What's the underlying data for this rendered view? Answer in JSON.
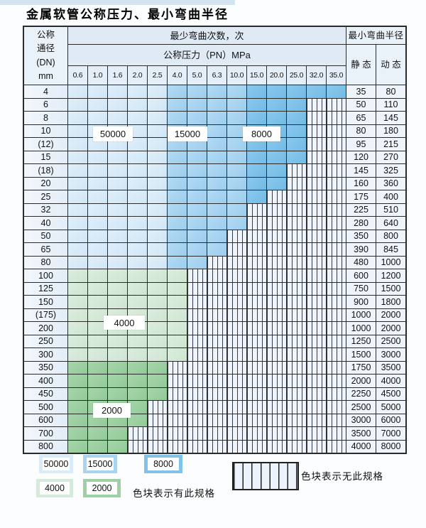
{
  "page": {
    "title": "金属软管公称压力、最小弯曲半径"
  },
  "table": {
    "header": {
      "dn_lines": [
        "公称",
        "通径",
        "(DN)",
        "mm"
      ],
      "cycles": "最少弯曲次数，次",
      "pressure": "公称压力（PN）MPa",
      "ticks": [
        "0.6",
        "1.0",
        "1.6",
        "2.0",
        "2.5",
        "4.0",
        "5.0",
        "6.3",
        "10.0",
        "15.0",
        "20.0",
        "25.0",
        "32.0",
        "35.0"
      ],
      "radius": "最小弯曲半径",
      "static": "静 态",
      "dynamic": "动 态"
    },
    "zones": {
      "blue_light_max_col": 5,
      "blue_mid_max_col": 9
    },
    "rows": [
      {
        "dn": "4",
        "group": "blue",
        "colored": 14,
        "static": "35",
        "dynamic": "80"
      },
      {
        "dn": "6",
        "group": "blue",
        "colored": 12,
        "static": "50",
        "dynamic": "110"
      },
      {
        "dn": "8",
        "group": "blue",
        "colored": 12,
        "static": "65",
        "dynamic": "145"
      },
      {
        "dn": "10",
        "group": "blue",
        "colored": 12,
        "static": "80",
        "dynamic": "180"
      },
      {
        "dn": "(12)",
        "group": "blue",
        "colored": 12,
        "static": "95",
        "dynamic": "215"
      },
      {
        "dn": "15",
        "group": "blue",
        "colored": 12,
        "static": "120",
        "dynamic": "270"
      },
      {
        "dn": "(18)",
        "group": "blue",
        "colored": 11,
        "static": "145",
        "dynamic": "325"
      },
      {
        "dn": "20",
        "group": "blue",
        "colored": 11,
        "static": "160",
        "dynamic": "360"
      },
      {
        "dn": "25",
        "group": "blue",
        "colored": 10,
        "static": "175",
        "dynamic": "400"
      },
      {
        "dn": "32",
        "group": "blue",
        "colored": 9,
        "static": "225",
        "dynamic": "510"
      },
      {
        "dn": "40",
        "group": "blue",
        "colored": 9,
        "static": "280",
        "dynamic": "640"
      },
      {
        "dn": "50",
        "group": "blue",
        "colored": 8,
        "static": "350",
        "dynamic": "800"
      },
      {
        "dn": "65",
        "group": "blue",
        "colored": 8,
        "static": "390",
        "dynamic": "845"
      },
      {
        "dn": "80",
        "group": "blue",
        "colored": 7,
        "static": "480",
        "dynamic": "1000"
      },
      {
        "dn": "100",
        "group": "green-light",
        "colored": 6,
        "static": "600",
        "dynamic": "1200"
      },
      {
        "dn": "125",
        "group": "green-light",
        "colored": 6,
        "static": "750",
        "dynamic": "1500"
      },
      {
        "dn": "150",
        "group": "green-light",
        "colored": 6,
        "static": "900",
        "dynamic": "1800"
      },
      {
        "dn": "(175)",
        "group": "green-light",
        "colored": 6,
        "static": "1000",
        "dynamic": "2000"
      },
      {
        "dn": "200",
        "group": "green-light",
        "colored": 6,
        "static": "1000",
        "dynamic": "2000"
      },
      {
        "dn": "250",
        "group": "green-light",
        "colored": 6,
        "static": "1250",
        "dynamic": "2500"
      },
      {
        "dn": "300",
        "group": "green-light",
        "colored": 6,
        "static": "1500",
        "dynamic": "3000"
      },
      {
        "dn": "350",
        "group": "green-dark",
        "colored": 5,
        "static": "1750",
        "dynamic": "3500"
      },
      {
        "dn": "400",
        "group": "green-dark",
        "colored": 5,
        "static": "2000",
        "dynamic": "4000"
      },
      {
        "dn": "450",
        "group": "green-dark",
        "colored": 5,
        "static": "2250",
        "dynamic": "4500"
      },
      {
        "dn": "500",
        "group": "green-dark",
        "colored": 4,
        "static": "2500",
        "dynamic": "5000"
      },
      {
        "dn": "600",
        "group": "green-dark",
        "colored": 4,
        "static": "3000",
        "dynamic": "6000"
      },
      {
        "dn": "700",
        "group": "green-dark",
        "colored": 3,
        "static": "3500",
        "dynamic": "7000"
      },
      {
        "dn": "800",
        "group": "green-dark",
        "colored": 3,
        "static": "4000",
        "dynamic": "8000"
      }
    ]
  },
  "overlays": {
    "l50000": "50000",
    "l15000": "15000",
    "l8000": "8000",
    "l4000": "4000",
    "l2000": "2000"
  },
  "legend": {
    "items": [
      {
        "label": "50000",
        "color": "#d9ebf8"
      },
      {
        "label": "15000",
        "color": "#a7d4f0"
      },
      {
        "label": "8000",
        "color": "#7fc2ea"
      },
      {
        "label": "4000",
        "color": "#d6ead9"
      },
      {
        "label": "2000",
        "color": "#9dd0a2"
      }
    ],
    "available_note": "色块表示有此规格",
    "unavailable_note": "色块表示无此规格"
  },
  "colors": {
    "grid_line": "#2b2b2b",
    "blue_50000": "#d9ebf8",
    "blue_15000": "#a7d4f0",
    "blue_8000": "#7fc2ea",
    "green_4000": "#d6ead9",
    "green_2000": "#9dd0a2",
    "hatch_bg": "#eef4fb",
    "header_bg": "#dfeaf5",
    "dn_col_bg": "#e9f1f9",
    "top_strip": "#d3e4f1"
  }
}
